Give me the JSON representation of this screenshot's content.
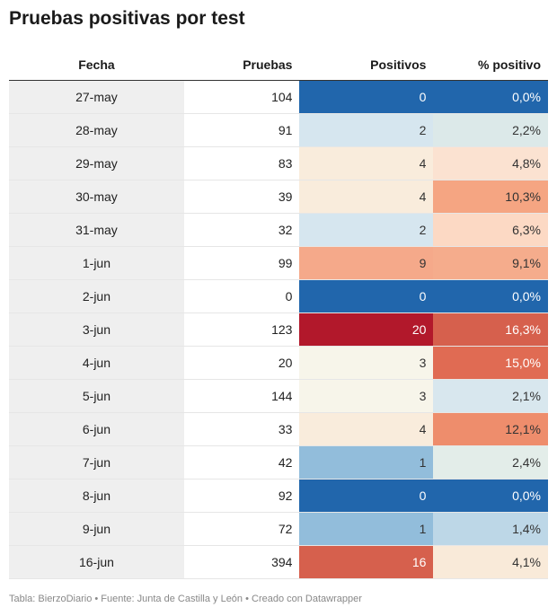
{
  "title": "Pruebas positivas por test",
  "chart_data": {
    "type": "table",
    "title": "Pruebas positivas por test",
    "columns": [
      "Fecha",
      "Pruebas",
      "Positivos",
      "% positivo"
    ],
    "rows": [
      {
        "fecha": "27-may",
        "pruebas": "104",
        "positivos": "0",
        "pct": "0,0%",
        "pos_color": "#2166ac",
        "pct_color": "#2166ac"
      },
      {
        "fecha": "28-may",
        "pruebas": "91",
        "positivos": "2",
        "pct": "2,2%",
        "pos_color": "#d6e6ef",
        "pct_color": "#dce9e9"
      },
      {
        "fecha": "29-may",
        "pruebas": "83",
        "positivos": "4",
        "pct": "4,8%",
        "pos_color": "#f9ecdc",
        "pct_color": "#fbe2d1"
      },
      {
        "fecha": "30-may",
        "pruebas": "39",
        "positivos": "4",
        "pct": "10,3%",
        "pos_color": "#f9ecdc",
        "pct_color": "#f5a582"
      },
      {
        "fecha": "31-may",
        "pruebas": "32",
        "positivos": "2",
        "pct": "6,3%",
        "pos_color": "#d6e6ef",
        "pct_color": "#fcd9c4"
      },
      {
        "fecha": "1-jun",
        "pruebas": "99",
        "positivos": "9",
        "pct": "9,1%",
        "pos_color": "#f5a98a",
        "pct_color": "#f5ac8c"
      },
      {
        "fecha": "2-jun",
        "pruebas": "0",
        "positivos": "0",
        "pct": "0,0%",
        "pos_color": "#2166ac",
        "pct_color": "#2166ac"
      },
      {
        "fecha": "3-jun",
        "pruebas": "123",
        "positivos": "20",
        "pct": "16,3%",
        "pos_color": "#b2182b",
        "pct_color": "#d6604d"
      },
      {
        "fecha": "4-jun",
        "pruebas": "20",
        "positivos": "3",
        "pct": "15,0%",
        "pos_color": "#f7f5ea",
        "pct_color": "#e06b53"
      },
      {
        "fecha": "5-jun",
        "pruebas": "144",
        "positivos": "3",
        "pct": "2,1%",
        "pos_color": "#f7f5ea",
        "pct_color": "#d8e7ee"
      },
      {
        "fecha": "6-jun",
        "pruebas": "33",
        "positivos": "4",
        "pct": "12,1%",
        "pos_color": "#f9ecdc",
        "pct_color": "#ee8d6c"
      },
      {
        "fecha": "7-jun",
        "pruebas": "42",
        "positivos": "1",
        "pct": "2,4%",
        "pos_color": "#92bddb",
        "pct_color": "#e3ede9"
      },
      {
        "fecha": "8-jun",
        "pruebas": "92",
        "positivos": "0",
        "pct": "0,0%",
        "pos_color": "#2166ac",
        "pct_color": "#2166ac"
      },
      {
        "fecha": "9-jun",
        "pruebas": "72",
        "positivos": "1",
        "pct": "1,4%",
        "pos_color": "#92bddb",
        "pct_color": "#bdd7e7"
      },
      {
        "fecha": "16-jun",
        "pruebas": "394",
        "positivos": "16",
        "pct": "4,1%",
        "pos_color": "#d6604d",
        "pct_color": "#f9ead9"
      }
    ]
  },
  "footer": "Tabla: BierzoDiario • Fuente: Junta de Castilla y León • Creado con Datawrapper"
}
